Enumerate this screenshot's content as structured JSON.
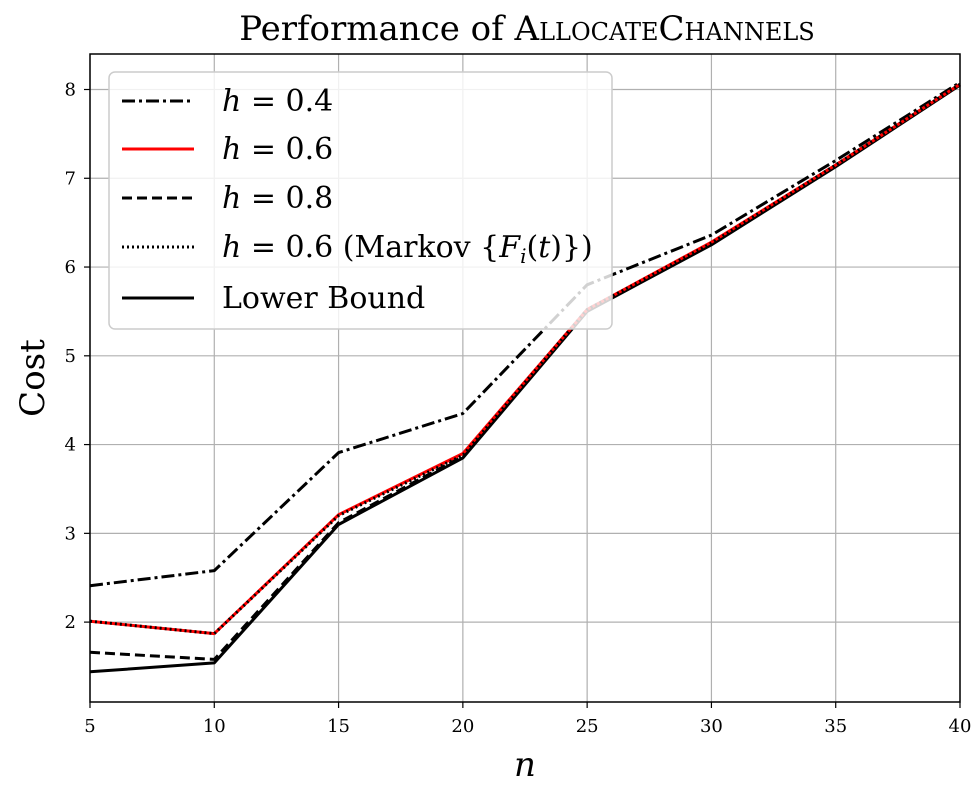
{
  "chart_data": {
    "type": "line",
    "title": "Performance of ",
    "title_name": "AllocateChannels",
    "xlabel": "n",
    "ylabel": "Cost",
    "xlim": [
      5,
      40
    ],
    "ylim": [
      1.1,
      8.4
    ],
    "xticks": [
      5,
      10,
      15,
      20,
      25,
      30,
      35,
      40
    ],
    "yticks": [
      2,
      3,
      4,
      5,
      6,
      7,
      8
    ],
    "grid": true,
    "legend_position": "upper-left",
    "x": [
      5,
      10,
      15,
      20,
      25,
      30,
      35,
      40
    ],
    "series": [
      {
        "name": "h = 0.4",
        "color": "#000000",
        "style": "dashdot",
        "values": [
          2.41,
          2.58,
          3.91,
          4.35,
          5.8,
          6.36,
          7.2,
          8.08
        ]
      },
      {
        "name": "h = 0.6",
        "color": "#ff0000",
        "style": "solid",
        "values": [
          2.01,
          1.87,
          3.21,
          3.9,
          5.52,
          6.28,
          7.15,
          8.06
        ]
      },
      {
        "name": "h = 0.8",
        "color": "#000000",
        "style": "dashed",
        "values": [
          1.66,
          1.58,
          3.12,
          3.87,
          5.52,
          6.27,
          7.15,
          8.06
        ]
      },
      {
        "name": "h = 0.6 (Markov {Fi(t)})",
        "color": "#000000",
        "style": "dotted",
        "values": [
          2.01,
          1.87,
          3.2,
          3.88,
          5.52,
          6.27,
          7.15,
          8.06
        ]
      },
      {
        "name": "Lower Bound",
        "color": "#000000",
        "style": "solid",
        "values": [
          1.44,
          1.54,
          3.1,
          3.85,
          5.5,
          6.25,
          7.13,
          8.05
        ]
      }
    ]
  }
}
